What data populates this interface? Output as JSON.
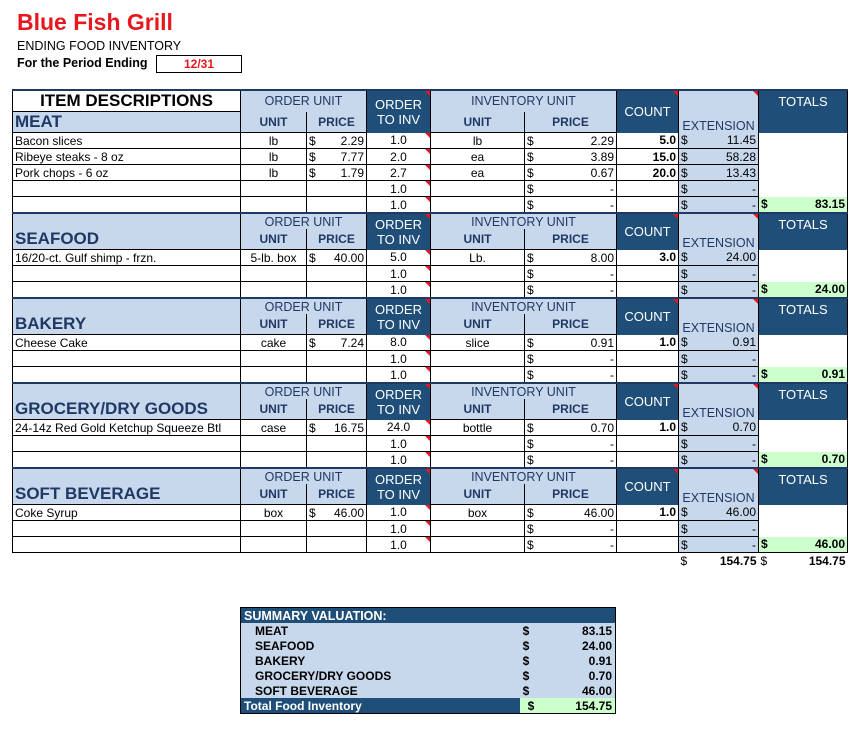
{
  "restaurant": "Blue Fish Grill",
  "report_title": "ENDING FOOD INVENTORY",
  "period_label": "For the Period Ending",
  "period_value": "12/31",
  "headers": {
    "item_descriptions": "ITEM DESCRIPTIONS",
    "order_unit": "ORDER UNIT",
    "unit": "UNIT",
    "price": "PRICE",
    "order_to_inv_1": "ORDER",
    "order_to_inv_2": "TO INV",
    "inventory_unit": "INVENTORY UNIT",
    "count": "COUNT",
    "extension": "EXTENSION",
    "totals": "TOTALS"
  },
  "dollar": "$",
  "categories": [
    {
      "name": "MEAT",
      "items": [
        {
          "desc": "Bacon slices",
          "unit": "lb",
          "price": "2.29",
          "ratio": "1.0",
          "inv_unit": "lb",
          "inv_price": "2.29",
          "count": "5.0",
          "ext": "11.45"
        },
        {
          "desc": "Ribeye steaks - 8 oz",
          "unit": "lb",
          "price": "7.77",
          "ratio": "2.0",
          "inv_unit": "ea",
          "inv_price": "3.89",
          "count": "15.0",
          "ext": "58.28"
        },
        {
          "desc": "Pork chops - 6 oz",
          "unit": "lb",
          "price": "1.79",
          "ratio": "2.7",
          "inv_unit": "ea",
          "inv_price": "0.67",
          "count": "20.0",
          "ext": "13.43"
        },
        {
          "desc": "",
          "unit": "",
          "price": "",
          "ratio": "1.0",
          "inv_unit": "",
          "inv_price": "-",
          "count": "",
          "ext": "-"
        },
        {
          "desc": "",
          "unit": "",
          "price": "",
          "ratio": "1.0",
          "inv_unit": "",
          "inv_price": "-",
          "count": "",
          "ext": "-"
        }
      ],
      "total": "83.15"
    },
    {
      "name": "SEAFOOD",
      "items": [
        {
          "desc": "16/20-ct. Gulf shimp - frzn.",
          "unit": "5-lb. box",
          "price": "40.00",
          "ratio": "5.0",
          "inv_unit": "Lb.",
          "inv_price": "8.00",
          "count": "3.0",
          "ext": "24.00"
        },
        {
          "desc": "",
          "unit": "",
          "price": "",
          "ratio": "1.0",
          "inv_unit": "",
          "inv_price": "-",
          "count": "",
          "ext": "-"
        },
        {
          "desc": "",
          "unit": "",
          "price": "",
          "ratio": "1.0",
          "inv_unit": "",
          "inv_price": "-",
          "count": "",
          "ext": "-"
        }
      ],
      "total": "24.00"
    },
    {
      "name": "BAKERY",
      "items": [
        {
          "desc": "Cheese Cake",
          "unit": "cake",
          "price": "7.24",
          "ratio": "8.0",
          "inv_unit": "slice",
          "inv_price": "0.91",
          "count": "1.0",
          "ext": "0.91"
        },
        {
          "desc": "",
          "unit": "",
          "price": "",
          "ratio": "1.0",
          "inv_unit": "",
          "inv_price": "-",
          "count": "",
          "ext": "-"
        },
        {
          "desc": "",
          "unit": "",
          "price": "",
          "ratio": "1.0",
          "inv_unit": "",
          "inv_price": "-",
          "count": "",
          "ext": "-"
        }
      ],
      "total": "0.91"
    },
    {
      "name": "GROCERY/DRY GOODS",
      "items": [
        {
          "desc": "24-14z Red Gold Ketchup Squeeze Btl",
          "unit": "case",
          "price": "16.75",
          "ratio": "24.0",
          "inv_unit": "bottle",
          "inv_price": "0.70",
          "count": "1.0",
          "ext": "0.70"
        },
        {
          "desc": "",
          "unit": "",
          "price": "",
          "ratio": "1.0",
          "inv_unit": "",
          "inv_price": "-",
          "count": "",
          "ext": "-"
        },
        {
          "desc": "",
          "unit": "",
          "price": "",
          "ratio": "1.0",
          "inv_unit": "",
          "inv_price": "-",
          "count": "",
          "ext": "-"
        }
      ],
      "total": "0.70"
    },
    {
      "name": "SOFT BEVERAGE",
      "items": [
        {
          "desc": "Coke Syrup",
          "unit": "box",
          "price": "46.00",
          "ratio": "1.0",
          "inv_unit": "box",
          "inv_price": "46.00",
          "count": "1.0",
          "ext": "46.00"
        },
        {
          "desc": "",
          "unit": "",
          "price": "",
          "ratio": "1.0",
          "inv_unit": "",
          "inv_price": "-",
          "count": "",
          "ext": "-"
        },
        {
          "desc": "",
          "unit": "",
          "price": "",
          "ratio": "1.0",
          "inv_unit": "",
          "inv_price": "-",
          "count": "",
          "ext": "-"
        }
      ],
      "total": "46.00"
    }
  ],
  "grand_total_ext": "154.75",
  "grand_total": "154.75",
  "summary": {
    "title": "SUMMARY VALUATION:",
    "rows": [
      {
        "label": "MEAT",
        "value": "83.15"
      },
      {
        "label": "SEAFOOD",
        "value": "24.00"
      },
      {
        "label": "BAKERY",
        "value": "0.91"
      },
      {
        "label": "GROCERY/DRY GOODS",
        "value": "0.70"
      },
      {
        "label": "SOFT BEVERAGE",
        "value": "46.00"
      }
    ],
    "total_label": "Total Food Inventory",
    "total_value": "154.75"
  },
  "colors": {
    "title": "#e8171d",
    "header_bg": "#c8d8ec",
    "dark_bg": "#1f4e79",
    "total_bg": "#ccffcc"
  }
}
